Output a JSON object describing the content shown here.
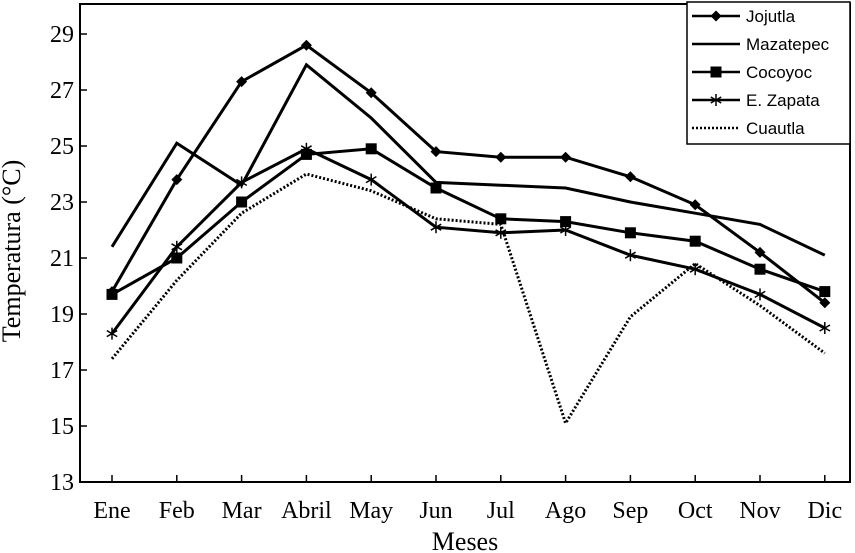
{
  "chart_data": {
    "type": "line",
    "xlabel": "Meses",
    "ylabel": "Temperatura (°C)",
    "ylim": [
      13,
      30
    ],
    "yticks": [
      13,
      15,
      17,
      19,
      21,
      23,
      25,
      27,
      29
    ],
    "categories": [
      "Ene",
      "Feb",
      "Mar",
      "Abril",
      "May",
      "Jun",
      "Jul",
      "Ago",
      "Sep",
      "Oct",
      "Nov",
      "Dic"
    ],
    "legend_position": "top-right",
    "grid": false,
    "series": [
      {
        "name": "Jojutla",
        "marker": "diamond",
        "dash": "solid",
        "values": [
          19.8,
          23.8,
          27.3,
          28.6,
          26.9,
          24.8,
          24.6,
          24.6,
          23.9,
          22.9,
          21.2,
          19.4
        ]
      },
      {
        "name": "Mazatepec",
        "marker": "none",
        "dash": "solid",
        "values": [
          21.4,
          25.1,
          23.6,
          27.9,
          26.0,
          23.7,
          23.6,
          23.5,
          23.0,
          22.6,
          22.2,
          21.1
        ]
      },
      {
        "name": "Cocoyoc",
        "marker": "square",
        "dash": "solid",
        "values": [
          19.7,
          21.0,
          23.0,
          24.7,
          24.9,
          23.5,
          22.4,
          22.3,
          21.9,
          21.6,
          20.6,
          19.8
        ]
      },
      {
        "name": "E. Zapata",
        "marker": "asterisk",
        "dash": "solid",
        "values": [
          18.3,
          21.4,
          23.7,
          24.9,
          23.8,
          22.1,
          21.9,
          22.0,
          21.1,
          20.6,
          19.7,
          18.5
        ]
      },
      {
        "name": "Cuautla",
        "marker": "none",
        "dash": "dotted",
        "values": [
          17.4,
          20.2,
          22.6,
          24.0,
          23.4,
          22.4,
          22.2,
          15.1,
          18.9,
          20.8,
          19.3,
          17.6
        ]
      }
    ]
  }
}
